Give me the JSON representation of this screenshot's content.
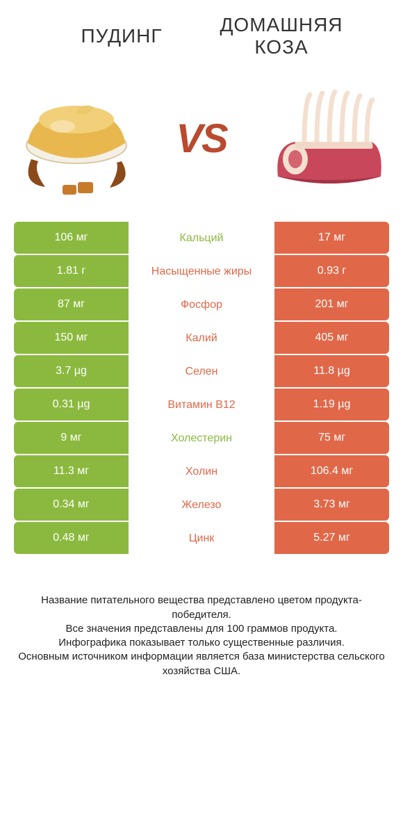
{
  "colors": {
    "green": "#8bb93f",
    "orange": "#e06849",
    "text": "#333333",
    "vs": "#b94a2f"
  },
  "header": {
    "left_title": "ПУДИНГ",
    "right_title_line1": "ДОМАШНЯЯ",
    "right_title_line2": "КОЗА",
    "vs": "VS"
  },
  "rows": [
    {
      "left": "106 мг",
      "label": "Кальций",
      "right": "17 мг",
      "winner": "left"
    },
    {
      "left": "1.81 г",
      "label": "Насыщенные жиры",
      "right": "0.93 г",
      "winner": "right"
    },
    {
      "left": "87 мг",
      "label": "Фосфор",
      "right": "201 мг",
      "winner": "right"
    },
    {
      "left": "150 мг",
      "label": "Калий",
      "right": "405 мг",
      "winner": "right"
    },
    {
      "left": "3.7 µg",
      "label": "Селен",
      "right": "11.8 µg",
      "winner": "right"
    },
    {
      "left": "0.31 µg",
      "label": "Витамин B12",
      "right": "1.19 µg",
      "winner": "right"
    },
    {
      "left": "9 мг",
      "label": "Холестерин",
      "right": "75 мг",
      "winner": "left"
    },
    {
      "left": "11.3 мг",
      "label": "Холин",
      "right": "106.4 мг",
      "winner": "right"
    },
    {
      "left": "0.34 мг",
      "label": "Железо",
      "right": "3.73 мг",
      "winner": "right"
    },
    {
      "left": "0.48 мг",
      "label": "Цинк",
      "right": "5.27 мг",
      "winner": "right"
    }
  ],
  "footer": {
    "line1": "Название питательного вещества представлено цветом продукта-победителя.",
    "line2": "Все значения представлены для 100 граммов продукта.",
    "line3": "Инфографика показывает только существенные различия.",
    "line4": "Основным источником информации является база министерства сельского хозяйства США."
  }
}
